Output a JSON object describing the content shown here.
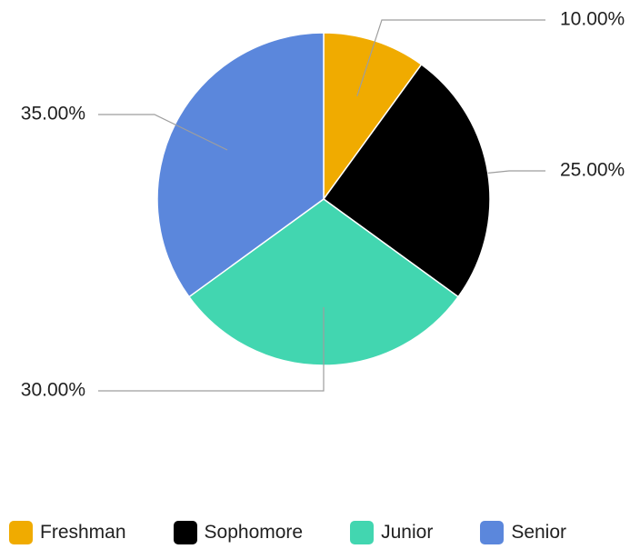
{
  "chart_data": {
    "type": "pie",
    "categories": [
      "Freshman",
      "Sophomore",
      "Junior",
      "Senior"
    ],
    "values": [
      10,
      25,
      30,
      35
    ],
    "data_labels": [
      "10.00%",
      "25.00%",
      "30.00%",
      "35.00%"
    ],
    "colors": [
      "#f0ab00",
      "#000000",
      "#42d6b0",
      "#5b87dc"
    ],
    "legend_position": "bottom",
    "title": ""
  },
  "legend": {
    "items": [
      {
        "label": "Freshman",
        "color": "#f0ab00"
      },
      {
        "label": "Sophomore",
        "color": "#000000"
      },
      {
        "label": "Junior",
        "color": "#42d6b0"
      },
      {
        "label": "Senior",
        "color": "#5b87dc"
      }
    ]
  }
}
